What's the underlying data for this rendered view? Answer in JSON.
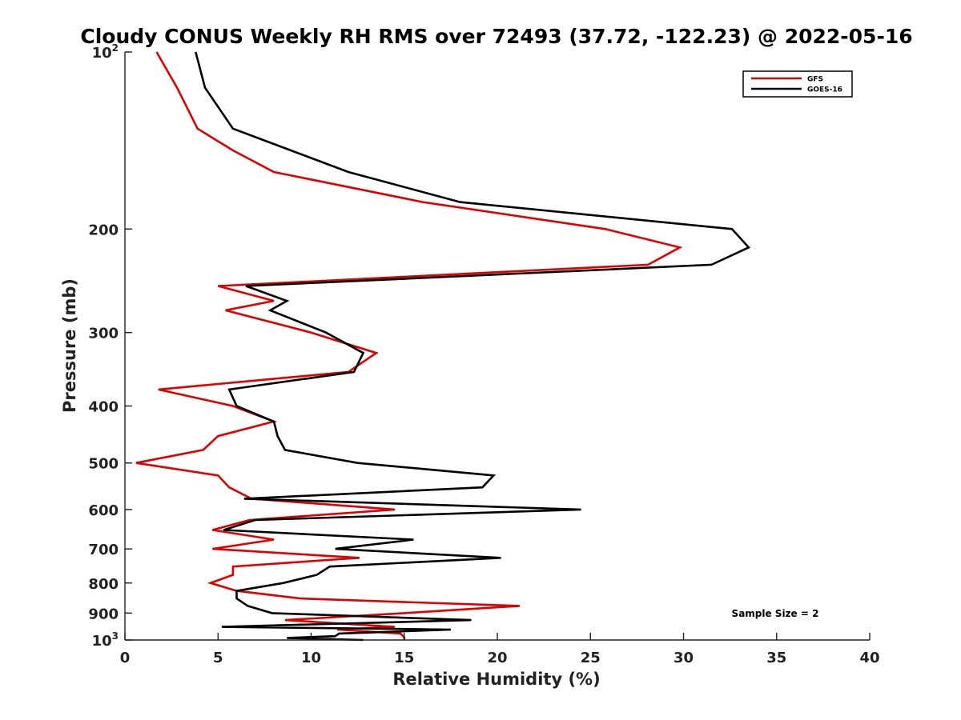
{
  "chart_data": {
    "type": "line",
    "title": "Cloudy CONUS Weekly RH RMS over 72493 (37.72, -122.23) @ 2022-05-16",
    "xlabel": "Relative Humidity (%)",
    "ylabel": "Pressure (mb)",
    "xlim": [
      0,
      40
    ],
    "ylim": [
      100,
      1000
    ],
    "y_scale": "log",
    "y_reversed": true,
    "x_ticks": [
      0,
      5,
      10,
      15,
      20,
      25,
      30,
      35,
      40
    ],
    "x_tick_labels": [
      "0",
      "5",
      "10",
      "15",
      "20",
      "25",
      "30",
      "35",
      "40"
    ],
    "y_ticks": [
      {
        "value": 100,
        "label": "10",
        "sup": "2"
      },
      {
        "value": 200,
        "label": "200",
        "sup": ""
      },
      {
        "value": 300,
        "label": "300",
        "sup": ""
      },
      {
        "value": 400,
        "label": "400",
        "sup": ""
      },
      {
        "value": 500,
        "label": "500",
        "sup": ""
      },
      {
        "value": 600,
        "label": "600",
        "sup": ""
      },
      {
        "value": 700,
        "label": "700",
        "sup": ""
      },
      {
        "value": 800,
        "label": "800",
        "sup": ""
      },
      {
        "value": 900,
        "label": "900",
        "sup": ""
      },
      {
        "value": 1000,
        "label": "10",
        "sup": "3"
      }
    ],
    "legend_position": "top-right",
    "annotation": "Sample Size = 2",
    "series": [
      {
        "name": "GFS",
        "color": "#e00000",
        "points": [
          [
            1.7,
            100
          ],
          [
            2.8,
            115
          ],
          [
            3.9,
            135
          ],
          [
            5.8,
            147
          ],
          [
            8.0,
            160
          ],
          [
            16.0,
            180
          ],
          [
            25.8,
            200
          ],
          [
            29.8,
            215
          ],
          [
            28.1,
            230
          ],
          [
            5.0,
            250
          ],
          [
            8.0,
            265
          ],
          [
            5.4,
            275
          ],
          [
            10.0,
            300
          ],
          [
            13.5,
            325
          ],
          [
            12.0,
            350
          ],
          [
            1.8,
            375
          ],
          [
            5.8,
            400
          ],
          [
            8.0,
            425
          ],
          [
            5.0,
            450
          ],
          [
            4.2,
            475
          ],
          [
            0.6,
            500
          ],
          [
            5.0,
            525
          ],
          [
            5.6,
            550
          ],
          [
            6.8,
            575
          ],
          [
            14.5,
            600
          ],
          [
            6.7,
            625
          ],
          [
            4.7,
            650
          ],
          [
            8.0,
            675
          ],
          [
            4.7,
            700
          ],
          [
            12.6,
            725
          ],
          [
            5.8,
            750
          ],
          [
            5.8,
            775
          ],
          [
            4.6,
            800
          ],
          [
            6.0,
            825
          ],
          [
            9.4,
            850
          ],
          [
            21.2,
            875
          ],
          [
            15.0,
            900
          ],
          [
            8.6,
            925
          ],
          [
            14.5,
            950
          ],
          [
            11.4,
            960
          ],
          [
            14.8,
            975
          ],
          [
            15.0,
            990
          ],
          [
            15.0,
            1000
          ]
        ]
      },
      {
        "name": "GOES-16",
        "color": "#000000",
        "points": [
          [
            3.8,
            100
          ],
          [
            4.3,
            115
          ],
          [
            5.8,
            135
          ],
          [
            12.0,
            160
          ],
          [
            18.0,
            180
          ],
          [
            32.6,
            200
          ],
          [
            33.5,
            215
          ],
          [
            31.5,
            230
          ],
          [
            6.5,
            250
          ],
          [
            8.7,
            265
          ],
          [
            7.8,
            275
          ],
          [
            10.8,
            300
          ],
          [
            12.8,
            325
          ],
          [
            12.3,
            350
          ],
          [
            5.6,
            375
          ],
          [
            6.0,
            400
          ],
          [
            8.0,
            425
          ],
          [
            8.2,
            450
          ],
          [
            8.6,
            475
          ],
          [
            12.5,
            500
          ],
          [
            19.8,
            525
          ],
          [
            19.2,
            550
          ],
          [
            6.4,
            575
          ],
          [
            24.5,
            600
          ],
          [
            7.0,
            625
          ],
          [
            5.3,
            650
          ],
          [
            15.5,
            675
          ],
          [
            11.3,
            700
          ],
          [
            20.2,
            725
          ],
          [
            11.0,
            750
          ],
          [
            10.3,
            775
          ],
          [
            8.5,
            800
          ],
          [
            6.0,
            825
          ],
          [
            6.0,
            850
          ],
          [
            6.6,
            875
          ],
          [
            7.9,
            900
          ],
          [
            18.6,
            925
          ],
          [
            5.2,
            950
          ],
          [
            17.5,
            960
          ],
          [
            11.5,
            975
          ],
          [
            11.3,
            985
          ],
          [
            8.7,
            992
          ],
          [
            12.8,
            1000
          ]
        ]
      }
    ]
  }
}
